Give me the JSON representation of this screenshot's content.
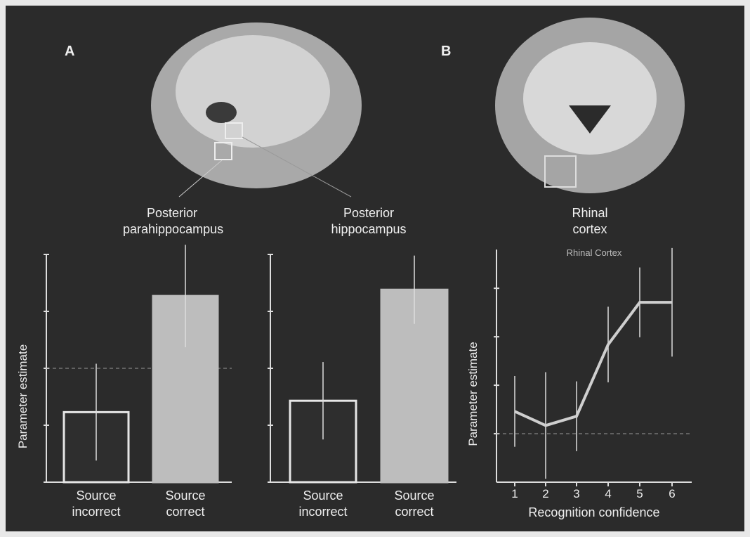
{
  "panels": {
    "a": "A",
    "b": "B",
    "region_a1": "Posterior parahippocampus",
    "region_a2": "Posterior hippocampus",
    "region_b": "Rhinal cortex"
  },
  "chart_data": [
    {
      "type": "bar",
      "y_label": "Parameter estimate",
      "categories": [
        "Source incorrect",
        "Source correct"
      ],
      "values": [
        -0.77,
        1.27
      ],
      "errors": [
        0.85,
        0.9
      ],
      "bar_fills": [
        "#2e2e2e",
        "#bdbdbd"
      ],
      "bar_strokes": [
        "#e6e6e6",
        "#bdbdbd"
      ],
      "ylim": [
        -2,
        2
      ],
      "yticks": [
        -2,
        -1,
        0,
        1,
        2
      ],
      "reference_line": 0
    },
    {
      "type": "bar",
      "categories": [
        "Source incorrect",
        "Source correct"
      ],
      "values": [
        -0.57,
        1.38
      ],
      "errors": [
        0.68,
        0.6
      ],
      "bar_fills": [
        "#2e2e2e",
        "#bdbdbd"
      ],
      "bar_strokes": [
        "#e6e6e6",
        "#bdbdbd"
      ],
      "ylim": [
        -2,
        2
      ],
      "yticks": [
        -2,
        -1,
        0,
        1,
        2
      ]
    },
    {
      "type": "line",
      "title": "Rhinal Cortex",
      "y_label": "Parameter estimate",
      "x_label": "Recognition confidence",
      "categories": [
        "1",
        "2",
        "3",
        "4",
        "5",
        "6"
      ],
      "values": [
        0.46,
        0.17,
        0.36,
        1.84,
        2.71,
        2.71
      ],
      "errors": [
        0.73,
        1.1,
        0.72,
        0.78,
        0.72,
        1.12
      ],
      "color": "#cfcfcf",
      "ylim": [
        -1,
        3.8
      ],
      "yticks": [
        0,
        1,
        2,
        3
      ],
      "reference_line": 0
    }
  ]
}
